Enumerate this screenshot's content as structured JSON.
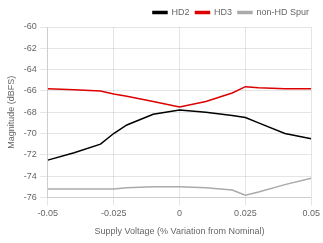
{
  "chart_data": {
    "type": "line",
    "x": [
      -0.05,
      -0.04,
      -0.03,
      -0.025,
      -0.02,
      -0.01,
      0.0,
      0.01,
      0.02,
      0.025,
      0.03,
      0.04,
      0.05
    ],
    "series": [
      {
        "name": "HD2",
        "color": "#000000",
        "values": [
          -72.5,
          -71.8,
          -71.0,
          -70.0,
          -69.2,
          -68.2,
          -67.8,
          -68.0,
          -68.3,
          -68.5,
          -69.0,
          -70.0,
          -70.5
        ]
      },
      {
        "name": "HD3",
        "color": "#dd0000",
        "values": [
          -65.8,
          -65.9,
          -66.0,
          -66.3,
          -66.5,
          -67.0,
          -67.5,
          -67.0,
          -66.2,
          -65.6,
          -65.7,
          -65.8,
          -65.8
        ]
      },
      {
        "name": "non-HD Spur",
        "color": "#aaaaaa",
        "values": [
          -75.2,
          -75.2,
          -75.2,
          -75.2,
          -75.1,
          -75.0,
          -75.0,
          -75.1,
          -75.3,
          -75.8,
          -75.5,
          -74.8,
          -74.2
        ]
      }
    ],
    "xlabel": "Supply Voltage (% Variation from Nominal)",
    "ylabel": "Magnitude (dBFS)",
    "xlim": [
      -0.05,
      0.05
    ],
    "xticks": [
      -0.05,
      -0.025,
      0,
      0.025,
      0.05
    ],
    "ylim": [
      -76,
      -60
    ],
    "yticks": [
      -76,
      -74,
      -72,
      -70,
      -68,
      -66,
      -64,
      -62,
      -60
    ],
    "grid": true,
    "legend": "upper right"
  }
}
